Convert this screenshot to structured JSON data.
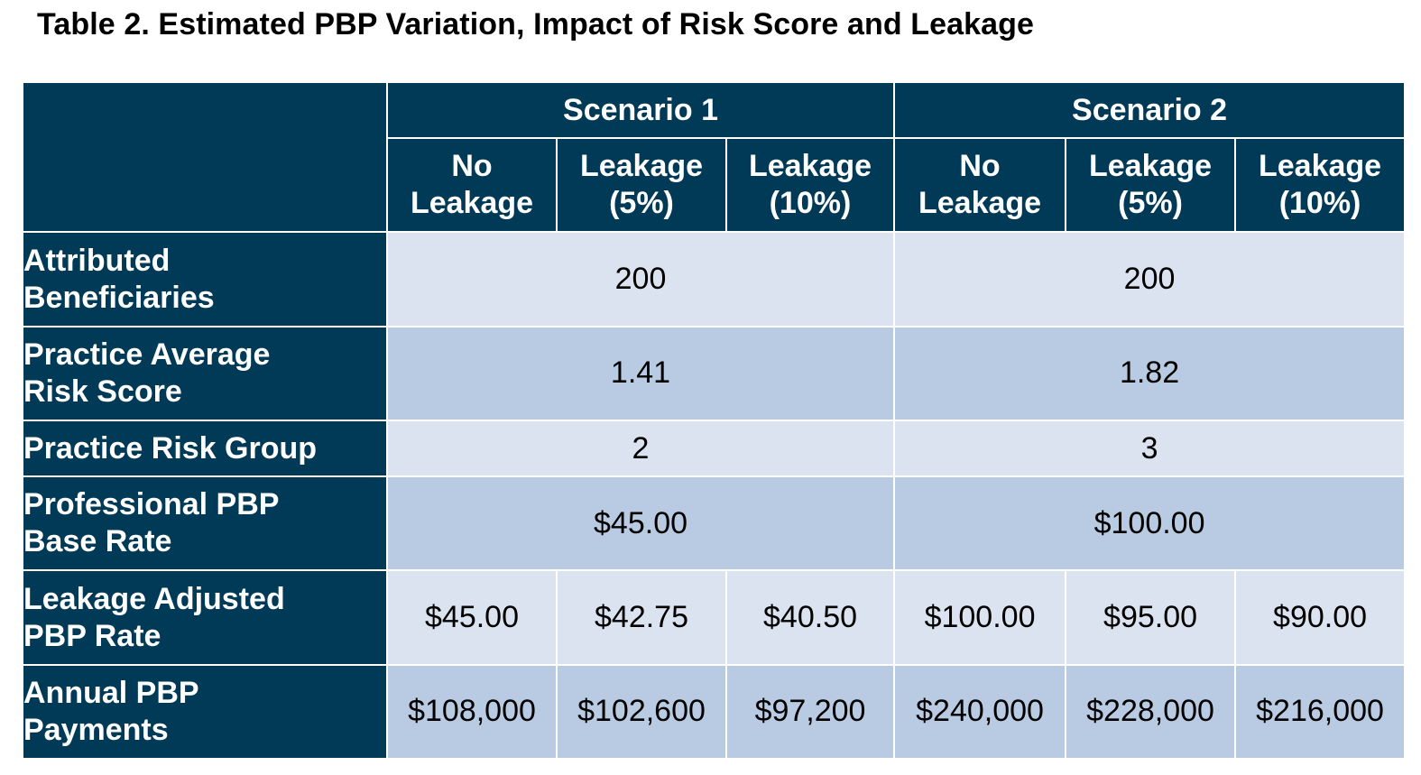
{
  "title": "Table 2. Estimated PBP Variation, Impact of Risk Score and Leakage",
  "header": {
    "scenario1": "Scenario 1",
    "scenario2": "Scenario 2",
    "subcols": [
      "No\nLeakage",
      "Leakage\n(5%)",
      "Leakage\n(10%)",
      "No\nLeakage",
      "Leakage\n(5%)",
      "Leakage\n(10%)"
    ]
  },
  "rows": {
    "attributed": {
      "label": "Attributed\nBeneficiaries",
      "s1": "200",
      "s2": "200"
    },
    "risk_score": {
      "label": "Practice Average\nRisk Score",
      "s1": "1.41",
      "s2": "1.82"
    },
    "risk_group": {
      "label": "Practice Risk Group",
      "s1": "2",
      "s2": "3"
    },
    "base_rate": {
      "label": "Professional PBP\nBase Rate",
      "s1": "$45.00",
      "s2": "$100.00"
    },
    "leakage_rate": {
      "label": "Leakage Adjusted\nPBP Rate",
      "values": [
        "$45.00",
        "$42.75",
        "$40.50",
        "$100.00",
        "$95.00",
        "$90.00"
      ]
    },
    "annual": {
      "label": "Annual PBP\nPayments",
      "values": [
        "$108,000",
        "$102,600",
        "$97,200",
        "$240,000",
        "$228,000",
        "$216,000"
      ]
    }
  },
  "colors": {
    "header_bg": "#003a57",
    "row_light": "#dae3ef",
    "row_mid": "#b9cbe2",
    "grid": "#ffffff"
  }
}
